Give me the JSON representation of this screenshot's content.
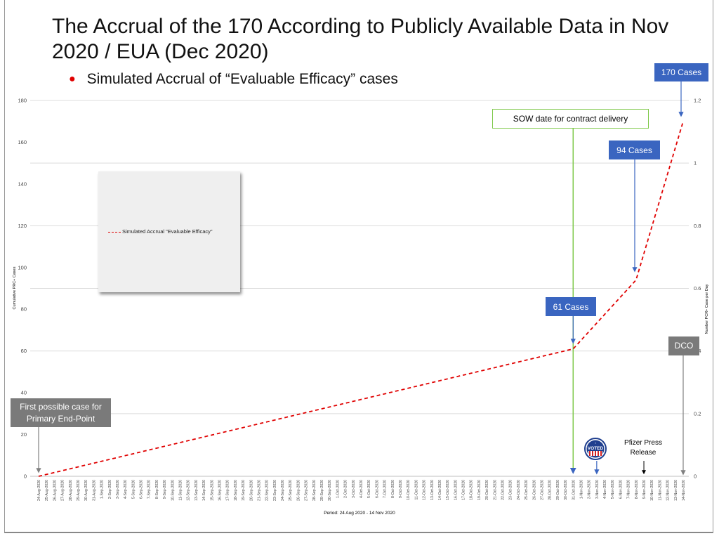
{
  "title": "The Accrual of the 170 According to Publicly Available Data in Nov 2020 / EUA (Dec 2020)",
  "subtitle": "Simulated Accrual of “Evaluable Efficacy” cases",
  "legend": {
    "label": "Simulated Accrual \"Evaluable Efficacy\""
  },
  "callouts": {
    "c170": "170 Cases",
    "c94": "94 Cases",
    "c61": "61 Cases",
    "dco": "DCO",
    "first_case": "First possible case for Primary End-Point",
    "sow": "SOW date for contract delivery",
    "pfizer": "Pfizer Press Release",
    "voted": "VOTED"
  },
  "colors": {
    "series": "#e00000",
    "callout_blue": "#3a65c0",
    "callout_grey": "#7a7a7a",
    "sow_line": "#7fc94a",
    "arrow_blue": "#3a65c0",
    "arrow_grey": "#808080"
  },
  "chart_data": {
    "type": "line",
    "xlabel": "Period: 24 Aug 2020 - 14 Nov 2020",
    "ylabel": "Cumulative PRC+ Cases",
    "y2label": "Number PCR+ Case per Day",
    "ylim": [
      0,
      180
    ],
    "y2lim": [
      0,
      1.2
    ],
    "yticks": [
      0,
      20,
      40,
      60,
      80,
      100,
      120,
      140,
      160,
      180
    ],
    "y2ticks": [
      0,
      0.2,
      0.4,
      0.6,
      0.8,
      1,
      1.2
    ],
    "grid": true,
    "categories": [
      "24-Aug-2020",
      "25-Aug-2020",
      "26-Aug-2020",
      "27-Aug-2020",
      "28-Aug-2020",
      "29-Aug-2020",
      "30-Aug-2020",
      "31-Aug-2020",
      "1-Sep-2020",
      "2-Sep-2020",
      "3-Sep-2020",
      "4-Sep-2020",
      "5-Sep-2020",
      "6-Sep-2020",
      "7-Sep-2020",
      "8-Sep-2020",
      "9-Sep-2020",
      "10-Sep-2020",
      "11-Sep-2020",
      "12-Sep-2020",
      "13-Sep-2020",
      "14-Sep-2020",
      "15-Sep-2020",
      "16-Sep-2020",
      "17-Sep-2020",
      "18-Sep-2020",
      "19-Sep-2020",
      "20-Sep-2020",
      "21-Sep-2020",
      "22-Sep-2020",
      "23-Sep-2020",
      "24-Sep-2020",
      "25-Sep-2020",
      "26-Sep-2020",
      "27-Sep-2020",
      "28-Sep-2020",
      "29-Sep-2020",
      "30-Sep-2020",
      "1-Oct-2020",
      "2-Oct-2020",
      "3-Oct-2020",
      "4-Oct-2020",
      "5-Oct-2020",
      "6-Oct-2020",
      "7-Oct-2020",
      "8-Oct-2020",
      "9-Oct-2020",
      "10-Oct-2020",
      "11-Oct-2020",
      "12-Oct-2020",
      "13-Oct-2020",
      "14-Oct-2020",
      "15-Oct-2020",
      "16-Oct-2020",
      "17-Oct-2020",
      "18-Oct-2020",
      "19-Oct-2020",
      "20-Oct-2020",
      "21-Oct-2020",
      "22-Oct-2020",
      "23-Oct-2020",
      "24-Oct-2020",
      "25-Oct-2020",
      "26-Oct-2020",
      "27-Oct-2020",
      "28-Oct-2020",
      "29-Oct-2020",
      "30-Oct-2020",
      "31-Oct-2020",
      "1-Nov-2020",
      "2-Nov-2020",
      "3-Nov-2020",
      "4-Nov-2020",
      "5-Nov-2020",
      "6-Nov-2020",
      "7-Nov-2020",
      "8-Nov-2020",
      "9-Nov-2020",
      "10-Nov-2020",
      "11-Nov-2020",
      "12-Nov-2020",
      "13-Nov-2020",
      "14-Nov-2020"
    ],
    "series": [
      {
        "name": "Simulated Accrual \"Evaluable Efficacy\"",
        "points": [
          [
            "24-Aug-2020",
            0
          ],
          [
            "31-Oct-2020",
            61
          ],
          [
            "8-Nov-2020",
            94
          ],
          [
            "14-Nov-2020",
            170
          ]
        ]
      }
    ],
    "markers": [
      {
        "date": "24-Aug-2020",
        "label": "First possible case for Primary End-Point"
      },
      {
        "date": "31-Oct-2020",
        "label": "SOW date for contract delivery"
      },
      {
        "date": "3-Nov-2020",
        "label": "VOTED"
      },
      {
        "date": "9-Nov-2020",
        "label": "Pfizer Press Release"
      },
      {
        "date": "14-Nov-2020",
        "label": "DCO"
      }
    ]
  }
}
